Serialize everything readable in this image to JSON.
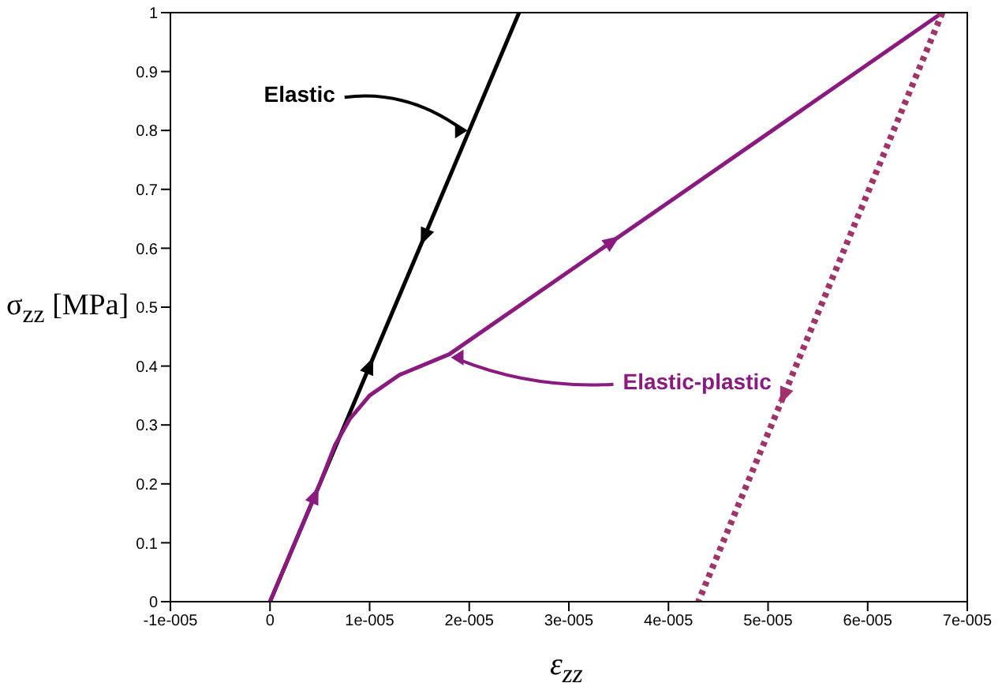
{
  "chart_data": {
    "type": "line",
    "xlabel": "ε$_{zz}$",
    "ylabel": "σ$_{zz}$ [MPa]",
    "xlim": [
      -1e-05,
      7e-05
    ],
    "xticks": [
      {
        "value": -1e-05,
        "label": "-1e-005"
      },
      0,
      {
        "value": 1e-05,
        "label": "1e-005"
      },
      {
        "value": 2e-05,
        "label": "2e-005"
      },
      {
        "value": 3e-05,
        "label": "3e-005"
      },
      {
        "value": 4e-05,
        "label": "4e-005"
      },
      {
        "value": 5e-05,
        "label": "5e-005"
      },
      {
        "value": 6e-05,
        "label": "6e-005"
      },
      {
        "value": 7e-05,
        "label": "7e-005"
      }
    ],
    "ylim": [
      0,
      1
    ],
    "yticks": [
      0,
      0.1,
      0.2,
      0.3,
      0.4,
      0.5,
      0.6,
      0.7,
      0.8,
      0.9,
      1
    ],
    "series": [
      {
        "name": "Elastic",
        "color": "#000000",
        "x": [
          0,
          2.5e-05
        ],
        "values": [
          0,
          1
        ]
      },
      {
        "name": "Elastic-plastic",
        "color": "#8b1a80",
        "x": [
          0,
          5e-06,
          6.5e-06,
          8e-06,
          1e-05,
          1.3e-05,
          1.8e-05,
          6.75e-05
        ],
        "values": [
          0,
          0.2,
          0.265,
          0.31,
          0.35,
          0.385,
          0.42,
          1
        ]
      },
      {
        "color": "#a0346a",
        "line_style": "dotted",
        "x": [
          6.75e-05,
          4.3e-05
        ],
        "values": [
          1,
          0
        ]
      }
    ]
  }
}
